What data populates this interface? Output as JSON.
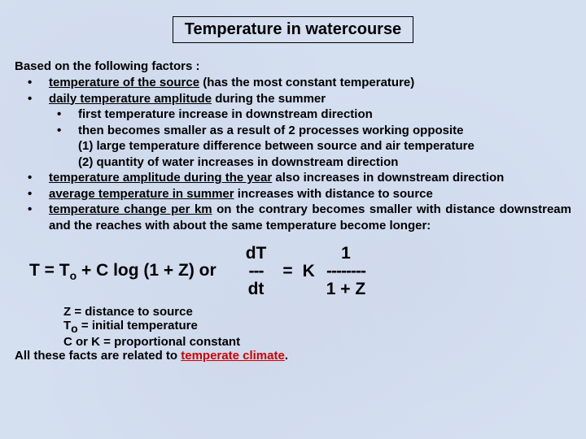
{
  "colors": {
    "background": "#d4dff0",
    "text": "#000000",
    "accent_red": "#cc0000",
    "title_border": "#000000"
  },
  "typography": {
    "body_fontsize_pt": 11,
    "title_fontsize_pt": 15,
    "equation_fontsize_pt": 16,
    "font_family": "Arial",
    "weight": "bold"
  },
  "title": "Temperature in watercourse",
  "intro": "Based on the following factors :",
  "bullets": {
    "b1_pre": "temperature  of the source",
    "b1_post": " (has the most constant temperature)",
    "b2_pre": "daily temperature amplitude",
    "b2_post": " during the summer",
    "b2a": "first temperature increase in downstream direction",
    "b2b": "then becomes smaller as a result of 2 processes working opposite",
    "b2b1": "(1) large temperature difference between source and air temperature",
    "b2b2": "(2) quantity of water increases in downstream direction",
    "b3_pre": "temperature amplitude during the year",
    "b3_post": " also increases in downstream direction",
    "b4_pre": "average temperature in summer",
    "b4_post": "  increases with distance to source",
    "b5_pre": "temperature change per km",
    "b5_post": " on the contrary becomes smaller with distance downstream and the reaches with about the same temperature become longer:"
  },
  "equation": {
    "left_part1": "T = T",
    "left_sub": "o",
    "left_part2": " + C log (1 + Z)  or",
    "frac1_top": "dT",
    "frac1_mid": "---",
    "frac1_bot": "dt",
    "equals": "=",
    "k": "K",
    "frac2_top": "1",
    "frac2_mid": "--------",
    "frac2_bot": "1 + Z"
  },
  "notes": {
    "n1": "Z = distance to source",
    "n2_a": "T",
    "n2_sub": "o",
    "n2_b": " = initial temperature",
    "n3": "C or K = proportional constant",
    "final_a": "All these facts are related to ",
    "final_red": "temperate climate",
    "final_b": "."
  }
}
